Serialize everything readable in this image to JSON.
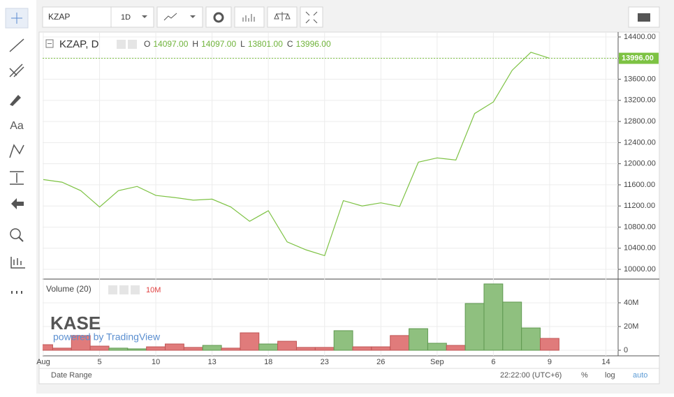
{
  "toolbar": {
    "symbol": "KZAP",
    "interval": "1D",
    "text_tool": "Aa"
  },
  "chart_data": [
    {
      "type": "line",
      "legend_title": "KZAP, D",
      "ohlc": [
        {
          "label": "O",
          "value": "14097.00"
        },
        {
          "label": "H",
          "value": "14097.00"
        },
        {
          "label": "L",
          "value": "13801.00"
        },
        {
          "label": "C",
          "value": "13996.00"
        }
      ],
      "last_price_label": "13996.00",
      "color": "#7dc243",
      "values": [
        11700,
        11650,
        11490,
        11180,
        11490,
        11570,
        11400,
        11360,
        11310,
        11330,
        11180,
        10910,
        11110,
        10520,
        10370,
        10260,
        11300,
        11200,
        11260,
        11190,
        12030,
        12110,
        12070,
        12950,
        13170,
        13770,
        14110,
        13996,
        null,
        null,
        null
      ],
      "ylim": [
        9842,
        14479
      ],
      "yticks": [
        {
          "value": 10000,
          "label": "10000.00"
        },
        {
          "value": 10400,
          "label": "10400.00"
        },
        {
          "value": 10800,
          "label": "10800.00"
        },
        {
          "value": 11200,
          "label": "11200.00"
        },
        {
          "value": 11600,
          "label": "11600.00"
        },
        {
          "value": 12000,
          "label": "12000.00"
        },
        {
          "value": 12400,
          "label": "12400.00"
        },
        {
          "value": 12800,
          "label": "12800.00"
        },
        {
          "value": 13200,
          "label": "13200.00"
        },
        {
          "value": 13600,
          "label": "13600.00"
        },
        {
          "value": 14000,
          "label": "14000.00"
        },
        {
          "value": 14400,
          "label": "14400.00"
        }
      ],
      "grid": true
    },
    {
      "type": "bar",
      "legend_title": "Volume (20)",
      "last_value_label": "10M",
      "categories": [
        "Aug",
        null,
        null,
        "5",
        null,
        null,
        "10",
        null,
        null,
        "13",
        null,
        null,
        "18",
        null,
        null,
        "23",
        null,
        null,
        "26",
        null,
        null,
        "Sep",
        null,
        null,
        "6",
        null,
        null,
        "9",
        null,
        null,
        "14"
      ],
      "values": [
        4700000,
        1800000,
        12400000,
        3500000,
        1800000,
        1200000,
        2900000,
        5300000,
        2400000,
        4100000,
        1800000,
        14700000,
        5300000,
        7600000,
        2400000,
        2400000,
        16500000,
        2900000,
        2900000,
        12400000,
        18200000,
        5900000,
        4100000,
        39400000,
        55900000,
        40600000,
        18800000,
        10000000,
        null,
        null,
        null
      ],
      "colors": [
        "#e07b7b",
        "#e07b7b",
        "#e07b7b",
        "#e07b7b",
        "#8fc07f",
        "#8fc07f",
        "#e07b7b",
        "#e07b7b",
        "#e07b7b",
        "#8fc07f",
        "#e07b7b",
        "#e07b7b",
        "#8fc07f",
        "#e07b7b",
        "#e07b7b",
        "#e07b7b",
        "#8fc07f",
        "#e07b7b",
        "#e07b7b",
        "#e07b7b",
        "#8fc07f",
        "#8fc07f",
        "#e07b7b",
        "#8fc07f",
        "#8fc07f",
        "#8fc07f",
        "#8fc07f",
        "#e07b7b",
        null,
        null,
        null
      ],
      "ylim": [
        -4700000,
        58800000
      ],
      "yticks": [
        0,
        {
          "value": 20000000,
          "label": "20M"
        },
        {
          "value": 40000000,
          "label": "40M"
        }
      ],
      "grid": true
    }
  ],
  "watermark": {
    "logo": "KASE",
    "tagline": "powered by TradingView"
  },
  "footer": {
    "date_range": "Date Range",
    "time": "22:22:00 (UTC+6)",
    "percent": "%",
    "log": "log",
    "auto": "auto"
  }
}
